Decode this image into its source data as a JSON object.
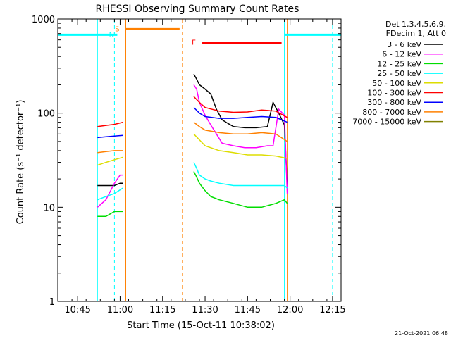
{
  "chart_data": {
    "type": "line",
    "title": "RHESSI Observing Summary Count Rates",
    "xlabel": "Start Time (15-Oct-11 10:38:02)",
    "ylabel": "Count Rate (s⁻¹ detector⁻¹)",
    "yscale": "log",
    "ylim": [
      1,
      1000
    ],
    "xlim": [
      "10:38",
      "12:18"
    ],
    "x_ticks": [
      "10:45",
      "11:00",
      "11:15",
      "11:30",
      "11:45",
      "12:00",
      "12:15"
    ],
    "y_ticks": [
      "1",
      "10",
      "100",
      "1000"
    ],
    "grid": false,
    "legend": {
      "placement": "right",
      "header": [
        "Det 1,3,4,5,6,9,",
        "FDecim 1, Att 0"
      ]
    },
    "series": [
      {
        "name": "3 - 6 keV",
        "color": "#000000",
        "segments": [
          {
            "x": [
              "10:52",
              "10:55",
              "10:58",
              "11:00",
              "11:01"
            ],
            "y": [
              17,
              17,
              17,
              18,
              18
            ]
          },
          {
            "x": [
              "11:26",
              "11:27",
              "11:28",
              "11:30",
              "11:32",
              "11:34",
              "11:36",
              "11:38",
              "11:40",
              "11:44",
              "11:48",
              "11:52",
              "11:54",
              "11:56",
              "11:58",
              "11:59"
            ],
            "y": [
              260,
              230,
              200,
              180,
              160,
              110,
              85,
              78,
              72,
              70,
              70,
              72,
              130,
              100,
              75,
              17
            ]
          }
        ]
      },
      {
        "name": "6 - 12 keV",
        "color": "#ff00ff",
        "segments": [
          {
            "x": [
              "10:52",
              "10:55",
              "10:58",
              "11:00",
              "11:01"
            ],
            "y": [
              10,
              12,
              18,
              22,
              22
            ]
          },
          {
            "x": [
              "11:26",
              "11:27",
              "11:28",
              "11:30",
              "11:32",
              "11:34",
              "11:36",
              "11:40",
              "11:44",
              "11:48",
              "11:52",
              "11:54",
              "11:56",
              "11:58",
              "11:59"
            ],
            "y": [
              200,
              180,
              130,
              95,
              75,
              60,
              48,
              45,
              43,
              43,
              45,
              45,
              110,
              95,
              14
            ]
          }
        ]
      },
      {
        "name": "12 - 25 keV",
        "color": "#00dd00",
        "segments": [
          {
            "x": [
              "10:52",
              "10:55",
              "10:58",
              "11:01"
            ],
            "y": [
              8,
              8,
              9,
              9
            ]
          },
          {
            "x": [
              "11:26",
              "11:27",
              "11:28",
              "11:30",
              "11:32",
              "11:35",
              "11:40",
              "11:45",
              "11:50",
              "11:55",
              "11:58",
              "11:59"
            ],
            "y": [
              24,
              21,
              18,
              15,
              13,
              12,
              11,
              10,
              10,
              11,
              12,
              11
            ]
          }
        ]
      },
      {
        "name": "25 - 50 keV",
        "color": "#00ffff",
        "segments": [
          {
            "x": [
              "10:52",
              "10:55",
              "10:58",
              "11:01"
            ],
            "y": [
              12,
              13,
              14,
              16
            ]
          },
          {
            "x": [
              "11:26",
              "11:27",
              "11:28",
              "11:30",
              "11:32",
              "11:35",
              "11:40",
              "11:45",
              "11:50",
              "11:55",
              "11:58",
              "11:59"
            ],
            "y": [
              30,
              26,
              22,
              20,
              19,
              18,
              17,
              17,
              17,
              17,
              17,
              16
            ]
          }
        ]
      },
      {
        "name": "50 - 100 keV",
        "color": "#dddd00",
        "segments": [
          {
            "x": [
              "10:52",
              "10:55",
              "10:58",
              "11:01"
            ],
            "y": [
              28,
              30,
              32,
              34
            ]
          },
          {
            "x": [
              "11:26",
              "11:28",
              "11:30",
              "11:35",
              "11:40",
              "11:45",
              "11:50",
              "11:55",
              "11:59"
            ],
            "y": [
              60,
              52,
              45,
              40,
              38,
              36,
              36,
              35,
              33
            ]
          }
        ]
      },
      {
        "name": "100 - 300 keV",
        "color": "#ff0000",
        "segments": [
          {
            "x": [
              "10:52",
              "10:55",
              "10:58",
              "11:01"
            ],
            "y": [
              72,
              74,
              76,
              80
            ]
          },
          {
            "x": [
              "11:26",
              "11:28",
              "11:30",
              "11:35",
              "11:40",
              "11:45",
              "11:50",
              "11:55",
              "11:59"
            ],
            "y": [
              150,
              130,
              115,
              105,
              102,
              103,
              108,
              105,
              90
            ]
          }
        ]
      },
      {
        "name": "300 - 800 keV",
        "color": "#0000ff",
        "segments": [
          {
            "x": [
              "10:52",
              "10:55",
              "10:58",
              "11:01"
            ],
            "y": [
              55,
              56,
              57,
              58
            ]
          },
          {
            "x": [
              "11:26",
              "11:28",
              "11:30",
              "11:35",
              "11:40",
              "11:45",
              "11:50",
              "11:55",
              "11:59"
            ],
            "y": [
              115,
              100,
              92,
              88,
              88,
              90,
              92,
              90,
              80
            ]
          }
        ]
      },
      {
        "name": "800 - 7000 keV",
        "color": "#ff8000",
        "segments": [
          {
            "x": [
              "10:52",
              "10:55",
              "10:58",
              "11:01"
            ],
            "y": [
              38,
              39,
              40,
              40
            ]
          },
          {
            "x": [
              "11:26",
              "11:28",
              "11:30",
              "11:35",
              "11:40",
              "11:45",
              "11:50",
              "11:55",
              "11:59"
            ],
            "y": [
              80,
              72,
              66,
              62,
              60,
              60,
              62,
              60,
              50
            ]
          }
        ]
      },
      {
        "name": "7000 - 15000 keV",
        "color": "#808000",
        "segments": []
      }
    ],
    "flags": [
      {
        "label": "N",
        "color": "#00ffff",
        "bars": [
          [
            "10:38",
            "10:59"
          ],
          [
            "11:58",
            "12:18"
          ]
        ],
        "level": 680
      },
      {
        "label": "S",
        "color": "#ff8000",
        "bars": [
          [
            "11:02",
            "11:21"
          ]
        ],
        "level": 780
      },
      {
        "label": "F",
        "color": "#ff0000",
        "bars": [
          [
            "11:29",
            "11:57"
          ]
        ],
        "level": 560
      }
    ],
    "markers": [
      {
        "time": "10:52",
        "color": "#00ffff",
        "style": "solid"
      },
      {
        "time": "10:58",
        "color": "#00ffff",
        "style": "dashed"
      },
      {
        "time": "11:02",
        "color": "#ff8000",
        "style": "solid"
      },
      {
        "time": "11:22",
        "color": "#ff8000",
        "style": "dashed"
      },
      {
        "time": "11:58",
        "color": "#00ffff",
        "style": "solid"
      },
      {
        "time": "11:59",
        "color": "#ff8000",
        "style": "solid"
      },
      {
        "time": "12:15",
        "color": "#00ffff",
        "style": "dashed"
      }
    ],
    "footer": "21-Oct-2021 06:48"
  }
}
